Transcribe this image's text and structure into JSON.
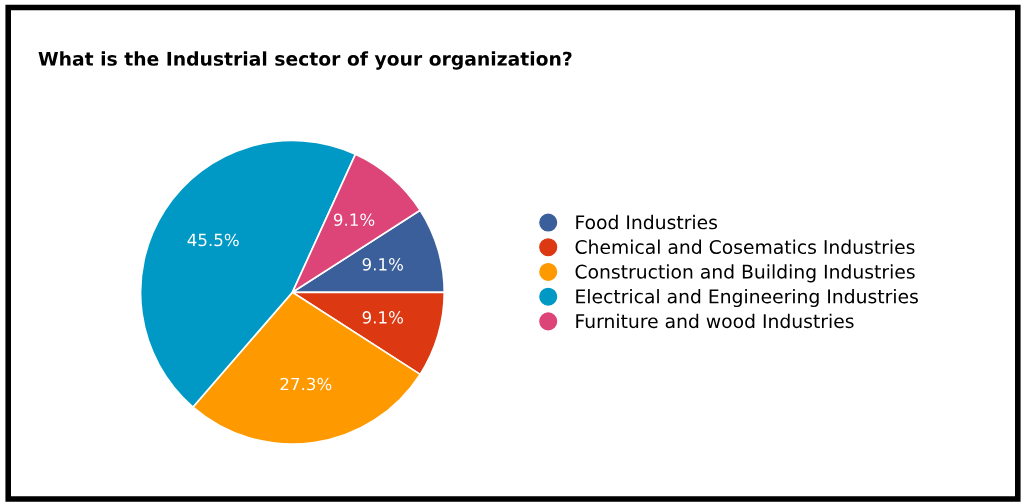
{
  "chart_data": {
    "type": "pie",
    "title": "What is the Industrial sector of your organization?",
    "categories": [
      "Food Industries",
      "Chemical and Cosematics Industries",
      "Construction and Building Industries",
      "Electrical and Engineering Industries",
      "Furniture and wood Industries"
    ],
    "values": [
      9.1,
      9.1,
      27.3,
      45.5,
      9.1
    ],
    "value_labels": [
      "9.1%",
      "9.1%",
      "27.3%",
      "45.5%",
      "9.1%"
    ],
    "colors": [
      "#3a5f9a",
      "#dc3912",
      "#ff9900",
      "#0099c6",
      "#dd4477"
    ],
    "legend": "right"
  }
}
